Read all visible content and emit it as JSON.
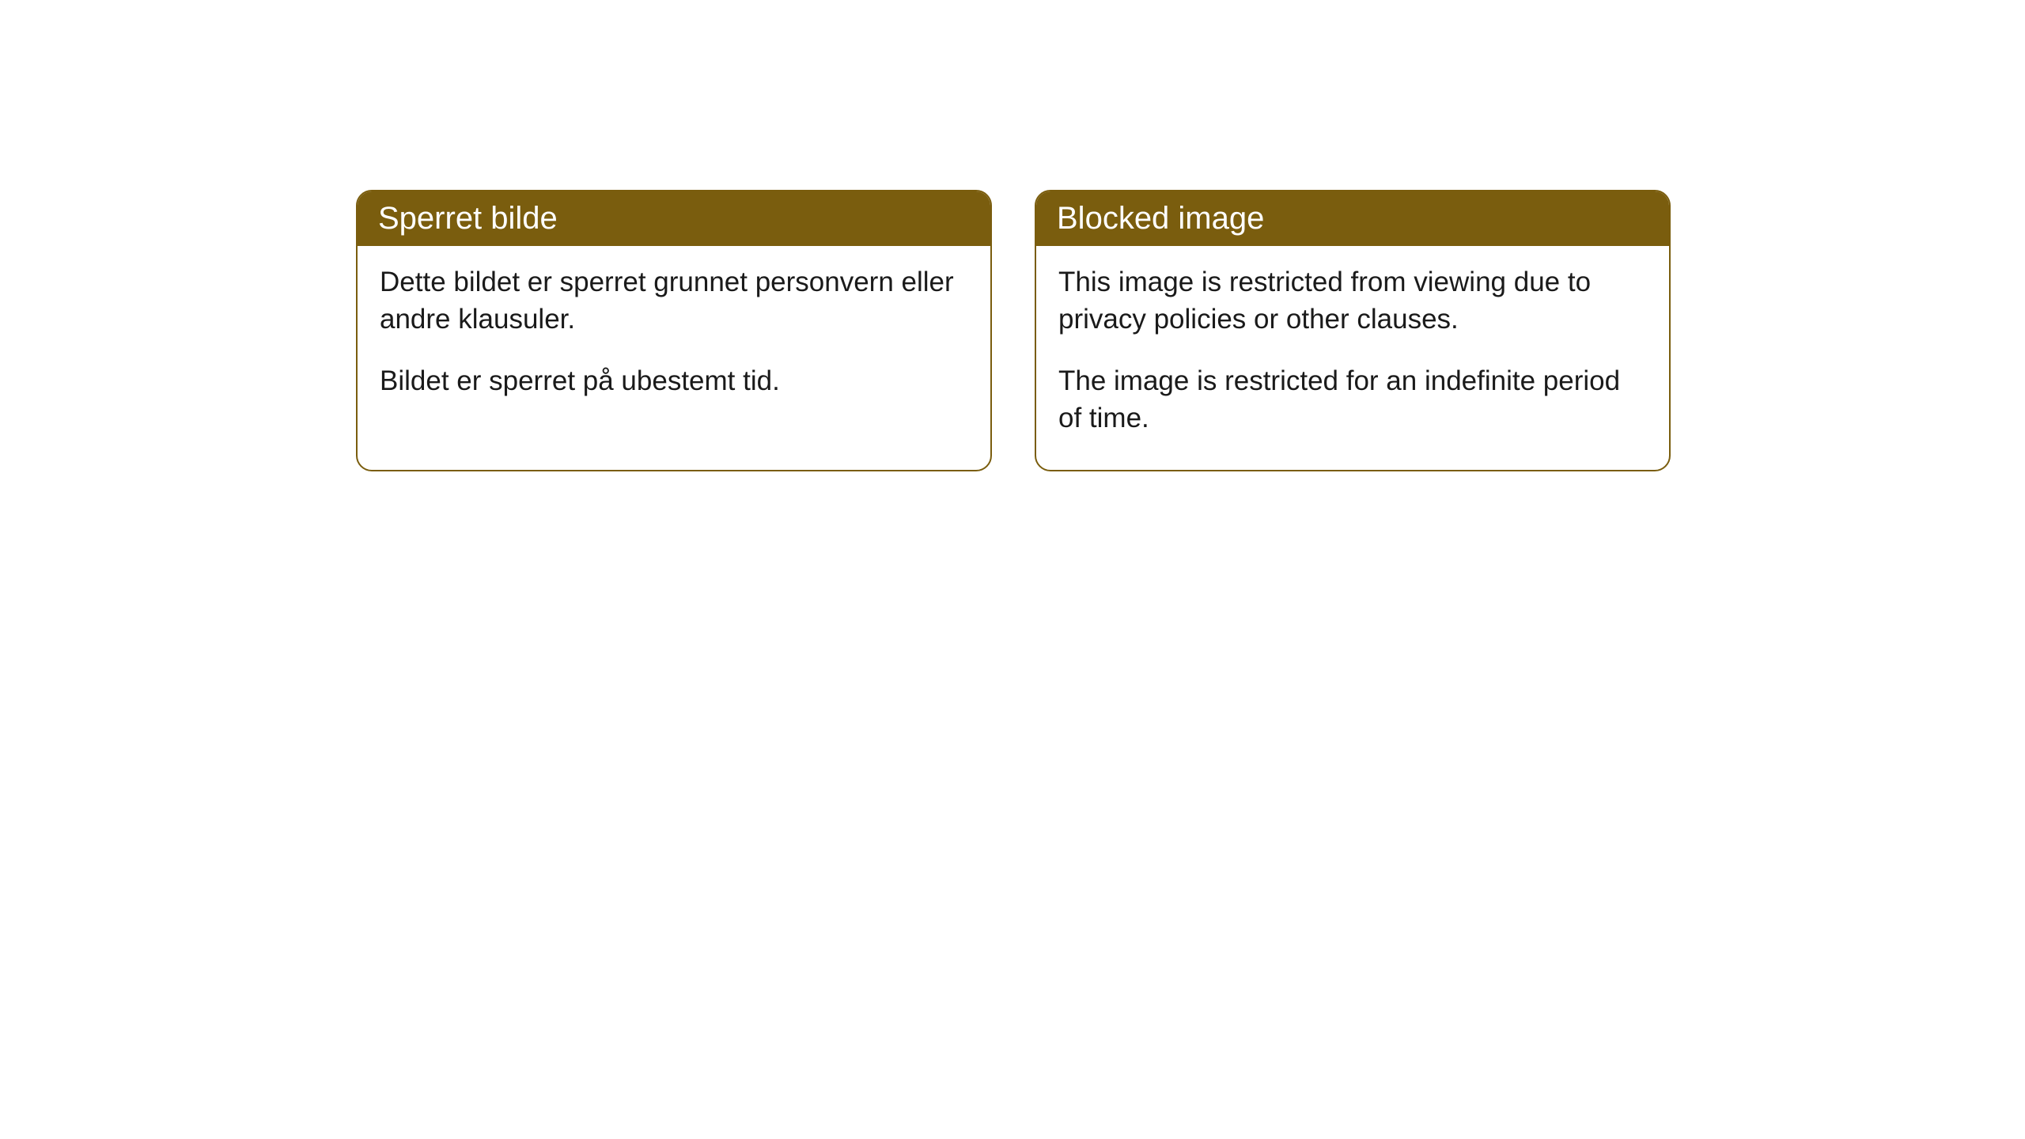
{
  "cards": [
    {
      "title": "Sperret bilde",
      "paragraph1": "Dette bildet er sperret grunnet personvern eller andre klausuler.",
      "paragraph2": "Bildet er sperret på ubestemt tid."
    },
    {
      "title": "Blocked image",
      "paragraph1": "This image is restricted from viewing due to privacy policies or other clauses.",
      "paragraph2": "The image is restricted for an indefinite period of time."
    }
  ],
  "style": {
    "header_bg_color": "#7a5d0e",
    "header_text_color": "#ffffff",
    "border_color": "#7a5d0e",
    "body_bg_color": "#ffffff",
    "body_text_color": "#1a1a1a",
    "border_radius": 20,
    "header_fontsize": 40,
    "body_fontsize": 35
  }
}
